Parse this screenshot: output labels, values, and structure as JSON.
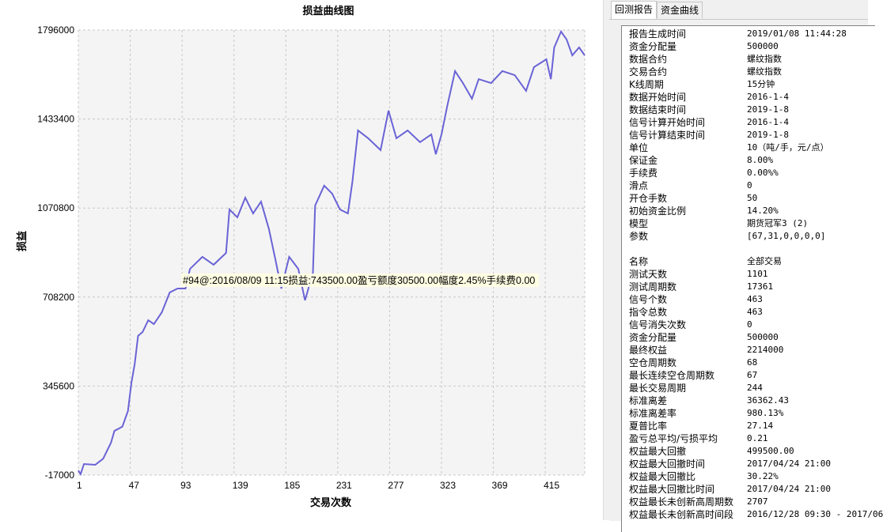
{
  "chart": {
    "title": "损益曲线图",
    "ylabel": "损益",
    "xlabel": "交易次数",
    "tooltip": "#94@:2016/08/09 11:15损益:743500.00盈亏额度30500.00幅度2.45%手续费0.00",
    "line_color": "#6a63d6",
    "plot_bg": "#f4f4f4"
  },
  "chart_data": {
    "type": "line",
    "title": "损益曲线图",
    "xlabel": "交易次数",
    "ylabel": "损益",
    "ylim": [
      -17000,
      1796000
    ],
    "xlim": [
      1,
      450
    ],
    "y_ticks": [
      "1796000",
      "1433400",
      "1070800",
      "708200",
      "345600",
      "-17000"
    ],
    "x_ticks": [
      "1",
      "47",
      "93",
      "139",
      "185",
      "231",
      "277",
      "323",
      "369",
      "415"
    ],
    "grid": true,
    "x": [
      1,
      3,
      6,
      16,
      23,
      30,
      33,
      40,
      45,
      48,
      51,
      54,
      58,
      63,
      68,
      75,
      82,
      89,
      96,
      100,
      111,
      121,
      132,
      135,
      142,
      149,
      156,
      163,
      170,
      176,
      181,
      188,
      196,
      202,
      209,
      211,
      219,
      226,
      233,
      240,
      244,
      249,
      258,
      269,
      276,
      283,
      293,
      304,
      314,
      318,
      323,
      328,
      335,
      342,
      350,
      356,
      367,
      377,
      388,
      398,
      405,
      416,
      420,
      423,
      429,
      434,
      439,
      445,
      450
    ],
    "y": [
      2000,
      -13000,
      28000,
      25000,
      50000,
      115000,
      163000,
      180000,
      244000,
      357000,
      437000,
      550000,
      566000,
      614000,
      598000,
      646000,
      727000,
      743000,
      743000,
      823000,
      872000,
      840000,
      888000,
      1065000,
      1033000,
      1113000,
      1049000,
      1097000,
      985000,
      856000,
      743000,
      872000,
      823000,
      695000,
      807000,
      1081000,
      1162000,
      1130000,
      1065000,
      1049000,
      1178000,
      1387000,
      1355000,
      1307000,
      1468000,
      1355000,
      1387000,
      1339000,
      1371000,
      1290000,
      1371000,
      1484000,
      1629000,
      1580000,
      1516000,
      1596000,
      1580000,
      1629000,
      1612000,
      1548000,
      1645000,
      1677000,
      1596000,
      1725000,
      1790000,
      1757000,
      1693000,
      1725000,
      1693000
    ]
  },
  "tabs": [
    {
      "label": "回测报告",
      "active": true
    },
    {
      "label": "资金曲线",
      "active": false
    }
  ],
  "report": {
    "rows": [
      [
        "报告生成时间",
        "2019/01/08 11:44:28"
      ],
      [
        "资金分配量",
        "500000"
      ],
      [
        "数据合约",
        "螺纹指数"
      ],
      [
        "交易合约",
        "螺纹指数"
      ],
      [
        "K线周期",
        "15分钟"
      ],
      [
        "数据开始时间",
        "2016-1-4"
      ],
      [
        "数据结束时间",
        "2019-1-8"
      ],
      [
        "信号计算开始时间",
        "2016-1-4"
      ],
      [
        "信号计算结束时间",
        "2019-1-8"
      ],
      [
        "单位",
        "10（吨/手，元/点）"
      ],
      [
        "保证金",
        "8.00%"
      ],
      [
        "手续费",
        "0.00%%"
      ],
      [
        "滑点",
        "0"
      ],
      [
        "开仓手数",
        "50"
      ],
      [
        "初始资金比例",
        "14.20%"
      ],
      [
        "模型",
        "期货冠军3 (2)"
      ],
      [
        "参数",
        "[67,31,0,0,0,0]"
      ],
      [
        "",
        ""
      ],
      [
        "名称",
        "全部交易"
      ],
      [
        "测试天数",
        "1101"
      ],
      [
        "测试周期数",
        "17361"
      ],
      [
        "信号个数",
        "463"
      ],
      [
        "指令总数",
        "463"
      ],
      [
        "信号消失次数",
        "0"
      ],
      [
        "资金分配量",
        "500000"
      ],
      [
        "最终权益",
        "2214000"
      ],
      [
        "空仓周期数",
        "68"
      ],
      [
        "最长连续空仓周期数",
        "67"
      ],
      [
        "最长交易周期",
        "244"
      ],
      [
        "标准离差",
        "36362.43"
      ],
      [
        "标准离差率",
        "980.13%"
      ],
      [
        "夏普比率",
        "27.14"
      ],
      [
        "盈亏总平均/亏损平均",
        "0.21"
      ],
      [
        "权益最大回撤",
        "499500.00"
      ],
      [
        "权益最大回撤时间",
        "2017/04/24 21:00"
      ],
      [
        "权益最大回撤比",
        "30.22%"
      ],
      [
        "权益最大回撤比时间",
        "2017/04/24 21:00"
      ],
      [
        "权益最长未创新高周期数",
        "2707"
      ],
      [
        "权益最长未创新高时间段",
        "2016/12/28 09:30 - 2017/06"
      ]
    ]
  }
}
